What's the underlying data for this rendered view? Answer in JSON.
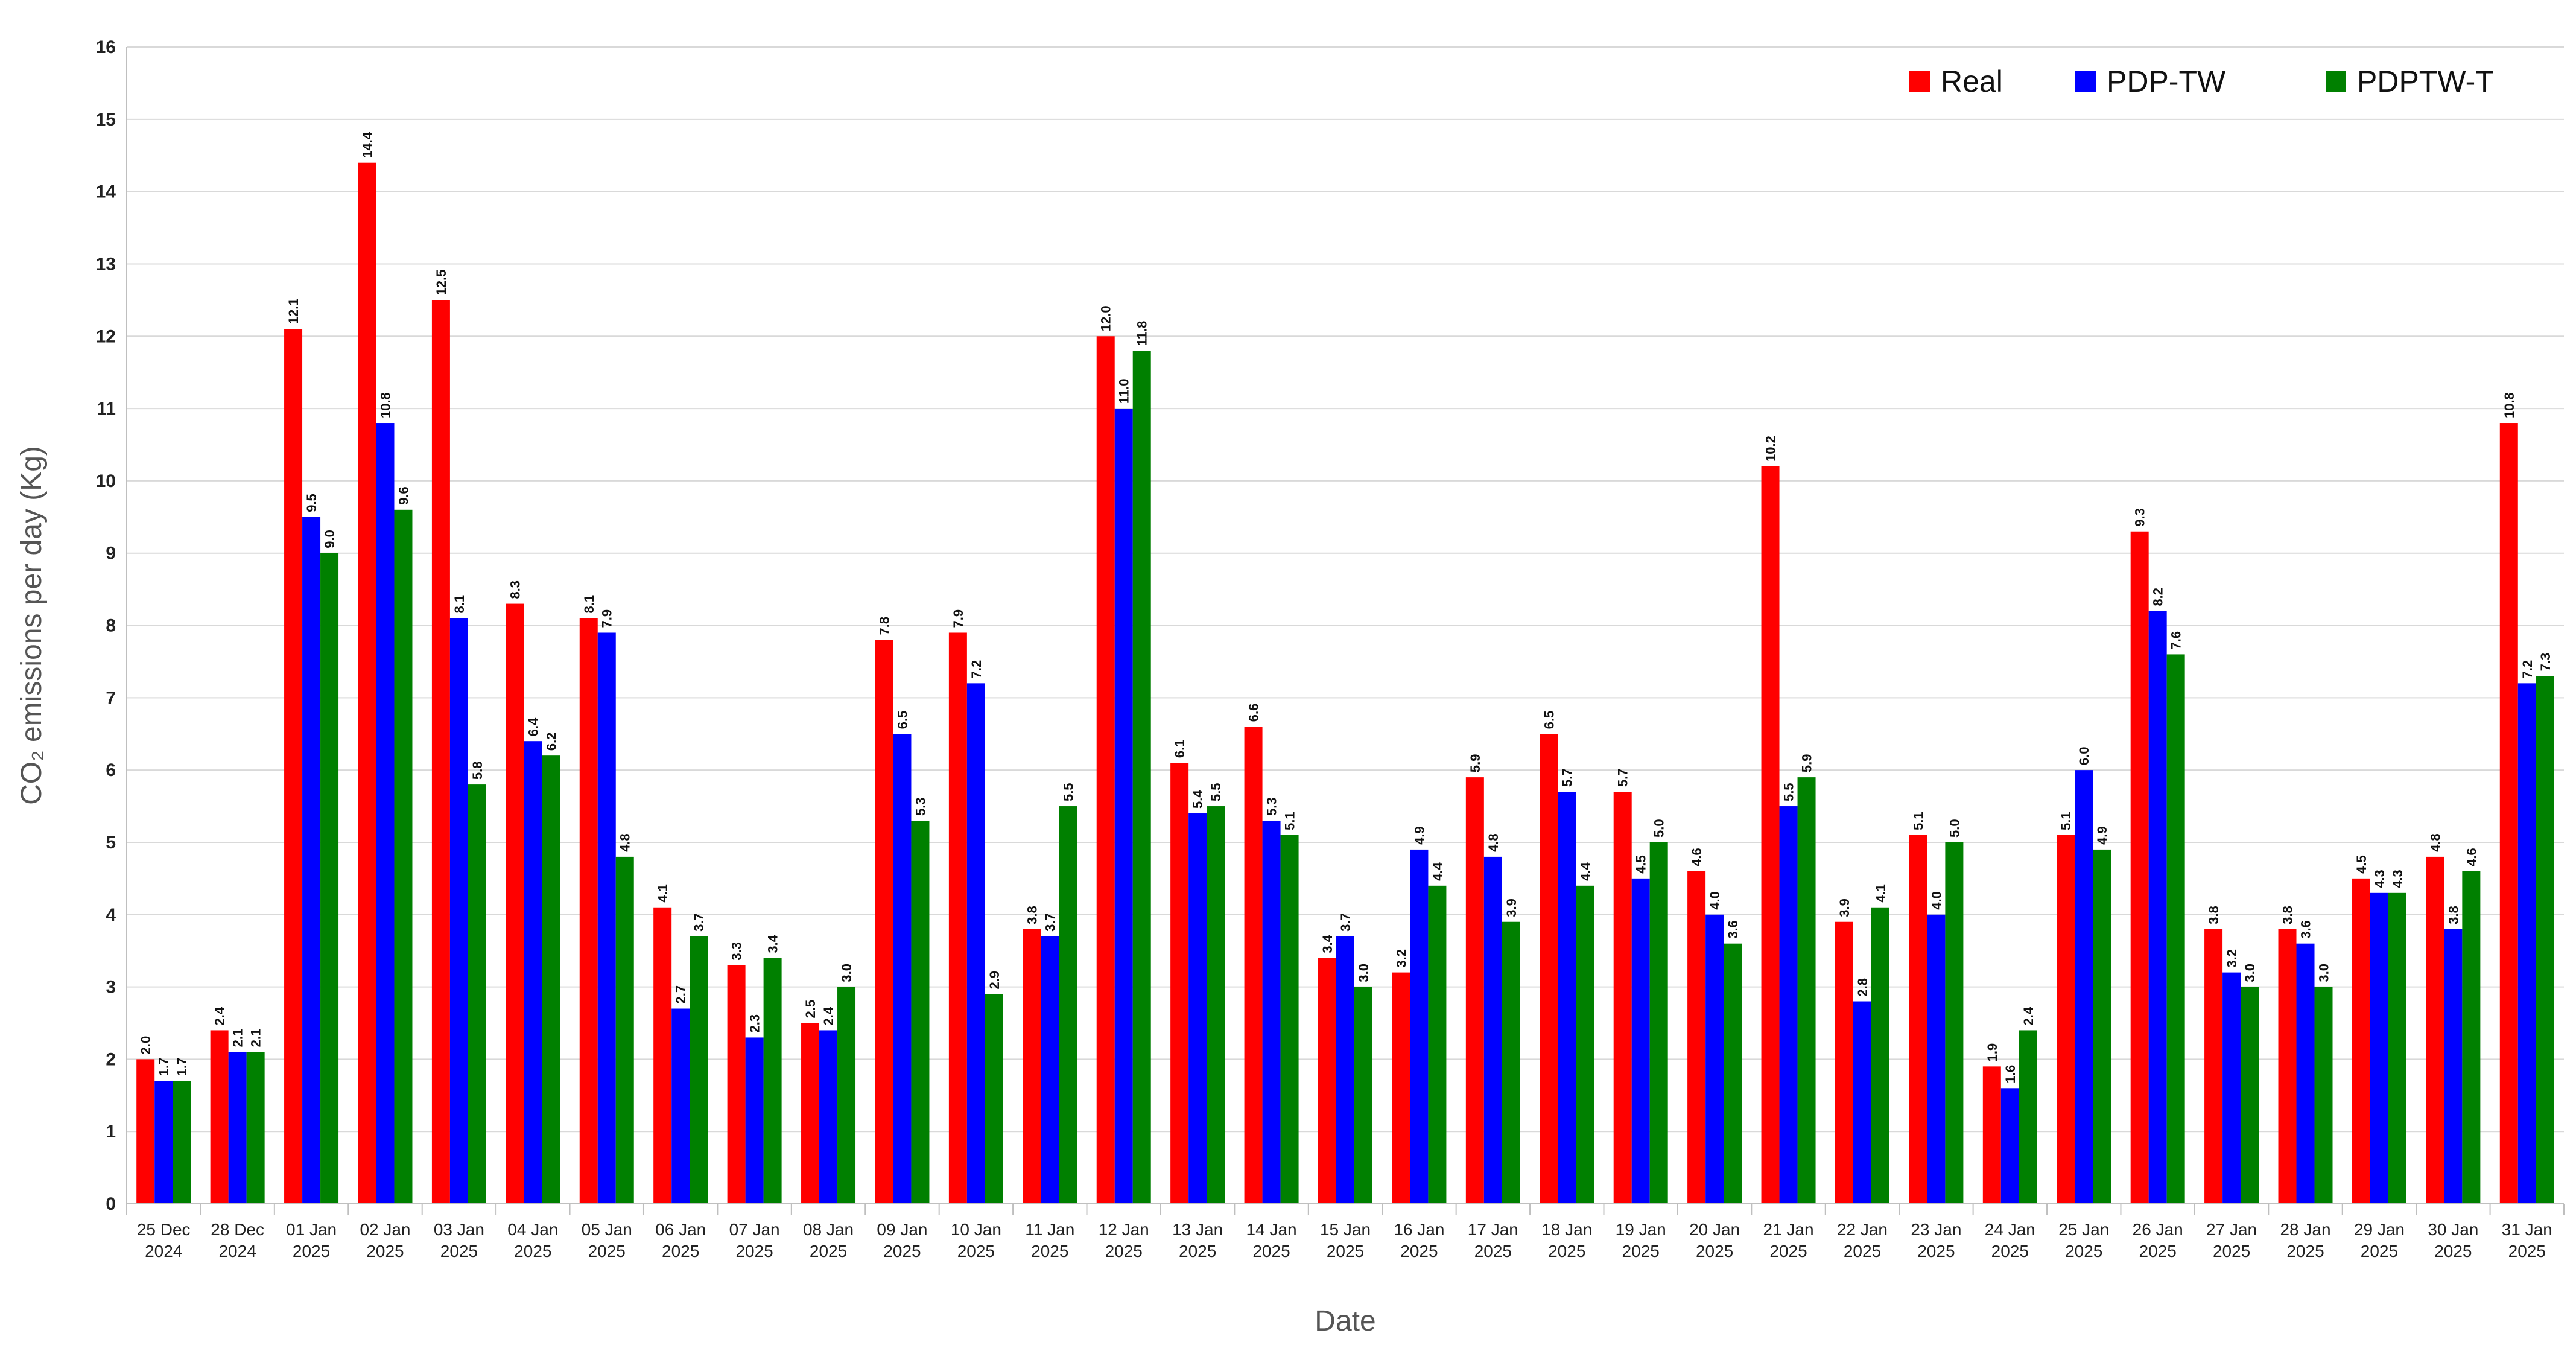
{
  "chart_data": {
    "type": "bar",
    "xlabel": "Date",
    "ylabel": "CO₂ emissions per day (Kg)",
    "ylim": [
      0,
      16
    ],
    "yticks": [
      0,
      1,
      2,
      3,
      4,
      5,
      6,
      7,
      8,
      9,
      10,
      11,
      12,
      13,
      14,
      15,
      16
    ],
    "grid": "horizontal",
    "legend_position": "top-right",
    "categories": [
      [
        "25 Dec",
        "2024"
      ],
      [
        "28 Dec",
        "2024"
      ],
      [
        "01 Jan",
        "2025"
      ],
      [
        "02 Jan",
        "2025"
      ],
      [
        "03 Jan",
        "2025"
      ],
      [
        "04 Jan",
        "2025"
      ],
      [
        "05 Jan",
        "2025"
      ],
      [
        "06 Jan",
        "2025"
      ],
      [
        "07 Jan",
        "2025"
      ],
      [
        "08 Jan",
        "2025"
      ],
      [
        "09 Jan",
        "2025"
      ],
      [
        "10 Jan",
        "2025"
      ],
      [
        "11 Jan",
        "2025"
      ],
      [
        "12 Jan",
        "2025"
      ],
      [
        "13 Jan",
        "2025"
      ],
      [
        "14 Jan",
        "2025"
      ],
      [
        "15 Jan",
        "2025"
      ],
      [
        "16 Jan",
        "2025"
      ],
      [
        "17 Jan",
        "2025"
      ],
      [
        "18 Jan",
        "2025"
      ],
      [
        "19 Jan",
        "2025"
      ],
      [
        "20 Jan",
        "2025"
      ],
      [
        "21 Jan",
        "2025"
      ],
      [
        "22 Jan",
        "2025"
      ],
      [
        "23 Jan",
        "2025"
      ],
      [
        "24 Jan",
        "2025"
      ],
      [
        "25 Jan",
        "2025"
      ],
      [
        "26 Jan",
        "2025"
      ],
      [
        "27 Jan",
        "2025"
      ],
      [
        "28 Jan",
        "2025"
      ],
      [
        "29 Jan",
        "2025"
      ],
      [
        "30 Jan",
        "2025"
      ],
      [
        "31 Jan",
        "2025"
      ]
    ],
    "series": [
      {
        "name": "Real",
        "color": "#ff0000",
        "values": [
          2.0,
          2.4,
          12.1,
          14.4,
          12.5,
          8.3,
          8.1,
          4.1,
          3.3,
          2.5,
          7.8,
          7.9,
          3.8,
          12.0,
          6.1,
          6.6,
          3.4,
          3.2,
          5.9,
          6.5,
          5.7,
          4.6,
          10.2,
          3.9,
          5.1,
          1.9,
          5.1,
          9.3,
          3.8,
          3.8,
          4.5,
          4.8,
          10.8
        ]
      },
      {
        "name": "PDP-TW",
        "color": "#0000ff",
        "values": [
          1.7,
          2.1,
          9.5,
          10.8,
          8.1,
          6.4,
          7.9,
          2.7,
          2.3,
          2.4,
          6.5,
          7.2,
          3.7,
          11.0,
          5.4,
          5.3,
          3.7,
          4.9,
          4.8,
          5.7,
          4.5,
          4.0,
          5.5,
          2.8,
          4.0,
          1.6,
          6.0,
          8.2,
          3.2,
          3.6,
          4.3,
          3.8,
          7.2
        ]
      },
      {
        "name": "PDPTW-T",
        "color": "#008000",
        "values": [
          1.7,
          2.1,
          9.0,
          9.6,
          5.8,
          6.2,
          4.8,
          3.7,
          3.4,
          3.0,
          5.3,
          2.9,
          5.5,
          11.8,
          5.5,
          5.1,
          3.0,
          4.4,
          3.9,
          4.4,
          5.0,
          3.6,
          5.9,
          4.1,
          5.0,
          2.4,
          4.9,
          7.6,
          3.0,
          3.0,
          4.3,
          4.6,
          7.3
        ]
      }
    ]
  }
}
